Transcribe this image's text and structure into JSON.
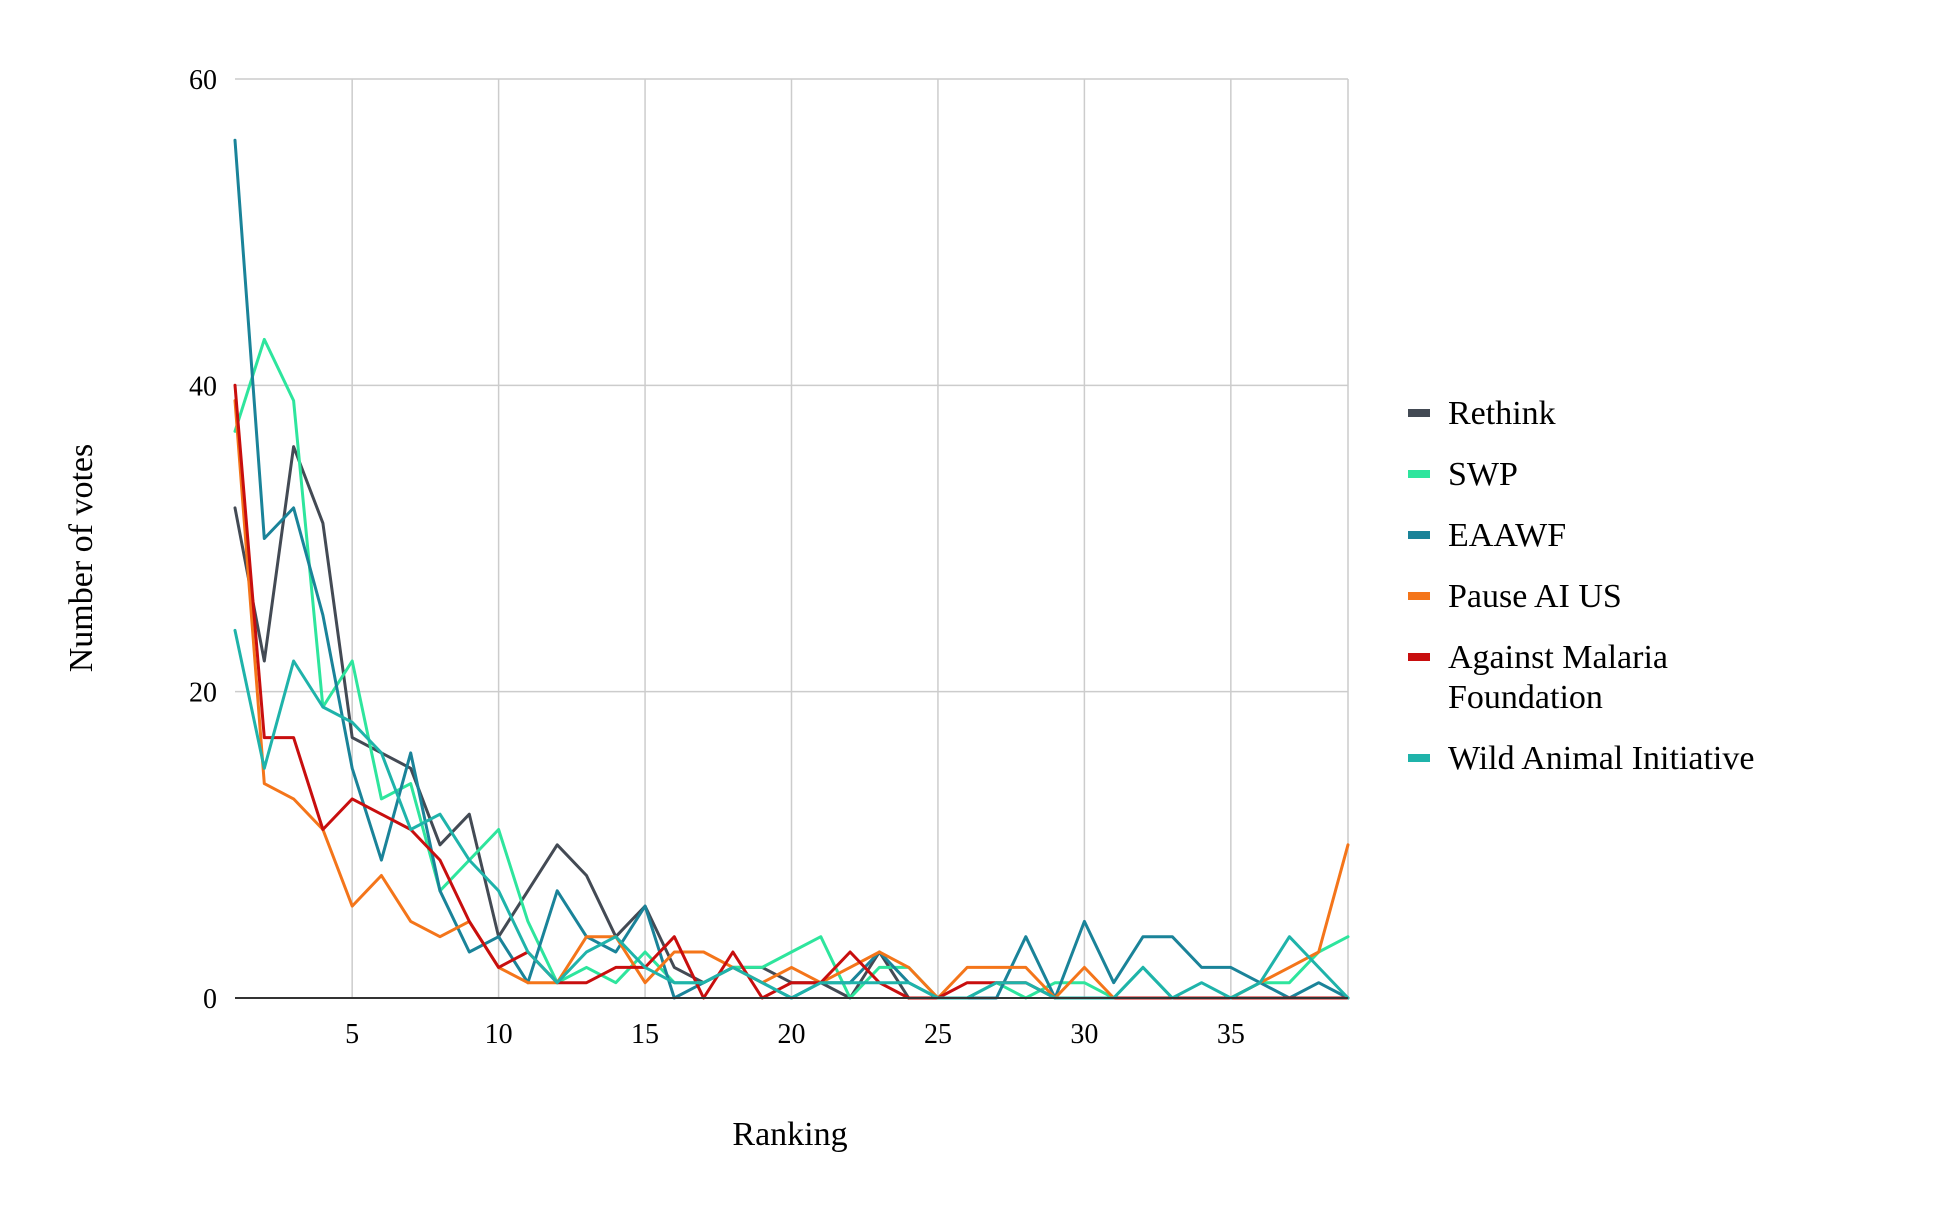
{
  "chart_data": {
    "type": "line",
    "title": "",
    "xlabel": "Ranking",
    "ylabel": "Number of votes",
    "xlim": [
      1,
      39
    ],
    "ylim": [
      0,
      60
    ],
    "x_ticks": [
      5,
      10,
      15,
      20,
      25,
      30,
      35
    ],
    "y_ticks": [
      0,
      20,
      40,
      60
    ],
    "grid": true,
    "legend_position": "right",
    "x": [
      1,
      2,
      3,
      4,
      5,
      6,
      7,
      8,
      9,
      10,
      11,
      12,
      13,
      14,
      15,
      16,
      17,
      18,
      19,
      20,
      21,
      22,
      23,
      24,
      25,
      26,
      27,
      28,
      29,
      30,
      31,
      32,
      33,
      34,
      35,
      36,
      37,
      38,
      39
    ],
    "series": [
      {
        "name": "Rethink",
        "color": "#434a54",
        "values": [
          32,
          22,
          36,
          31,
          17,
          16,
          15,
          10,
          12,
          4,
          7,
          10,
          8,
          4,
          6,
          2,
          1,
          2,
          2,
          1,
          1,
          0,
          3,
          0,
          null,
          null,
          null,
          null,
          null,
          null,
          null,
          null,
          null,
          null,
          null,
          null,
          null,
          null,
          null
        ]
      },
      {
        "name": "SWP",
        "color": "#2ee59d",
        "values": [
          37,
          43,
          39,
          19,
          22,
          13,
          14,
          7,
          9,
          11,
          5,
          1,
          2,
          1,
          3,
          1,
          1,
          2,
          2,
          3,
          4,
          0,
          2,
          2,
          0,
          0,
          1,
          0,
          1,
          1,
          0,
          2,
          0,
          0,
          0,
          1,
          1,
          3,
          4
        ]
      },
      {
        "name": "EAAWF",
        "color": "#1a8399",
        "values": [
          56,
          30,
          32,
          25,
          15,
          9,
          16,
          7,
          3,
          4,
          1,
          7,
          4,
          3,
          6,
          0,
          1,
          2,
          1,
          0,
          1,
          1,
          3,
          1,
          0,
          0,
          0,
          4,
          0,
          5,
          1,
          4,
          4,
          2,
          2,
          1,
          0,
          1,
          0
        ]
      },
      {
        "name": "Pause AI US",
        "color": "#f4751a",
        "values": [
          39,
          14,
          13,
          11,
          6,
          8,
          5,
          4,
          5,
          2,
          1,
          1,
          4,
          4,
          1,
          3,
          3,
          2,
          1,
          2,
          1,
          2,
          3,
          2,
          0,
          2,
          2,
          2,
          0,
          2,
          0,
          0,
          0,
          0,
          0,
          1,
          2,
          3,
          10
        ]
      },
      {
        "name": "Against Malaria Foundation",
        "name_lines": [
          "Against Malaria",
          "Foundation"
        ],
        "color": "#c80e0e",
        "values": [
          40,
          17,
          17,
          11,
          13,
          12,
          11,
          9,
          5,
          2,
          3,
          1,
          1,
          2,
          2,
          4,
          0,
          3,
          0,
          1,
          1,
          3,
          1,
          0,
          0,
          1,
          1,
          1,
          0,
          0,
          0,
          0,
          0,
          0,
          0,
          0,
          0,
          0,
          0
        ]
      },
      {
        "name": "Wild Animal Initiative",
        "color": "#1fb3aa",
        "values": [
          24,
          15,
          22,
          19,
          18,
          16,
          11,
          12,
          9,
          7,
          3,
          1,
          3,
          4,
          2,
          1,
          1,
          2,
          1,
          0,
          1,
          1,
          1,
          1,
          0,
          0,
          1,
          1,
          0,
          0,
          0,
          2,
          0,
          1,
          0,
          1,
          4,
          2,
          0
        ]
      }
    ]
  }
}
